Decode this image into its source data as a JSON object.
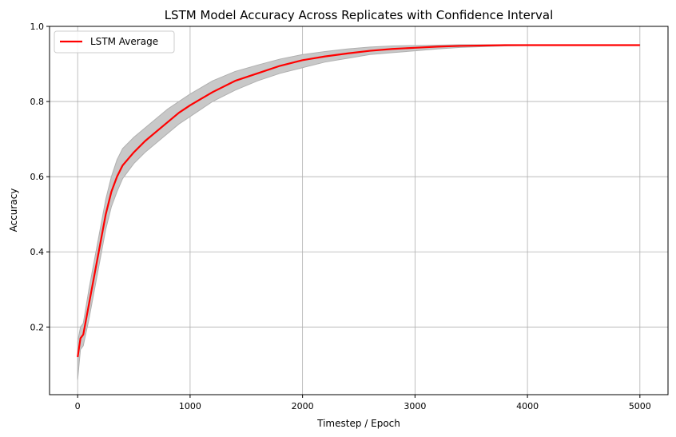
{
  "chart_data": {
    "type": "line",
    "title": "LSTM Model Accuracy Across Replicates with Confidence Interval",
    "xlabel": "Timestep / Epoch",
    "ylabel": "Accuracy",
    "xlim": [
      -250,
      5250
    ],
    "ylim": [
      0.02,
      1.0
    ],
    "xticks": [
      0,
      1000,
      2000,
      3000,
      4000,
      5000
    ],
    "yticks": [
      0.2,
      0.4,
      0.6,
      0.8,
      1.0
    ],
    "grid": true,
    "legend": {
      "placement": "top-left",
      "entries": [
        "LSTM Average"
      ]
    },
    "colors": {
      "mean_line": "#ff0000",
      "band_fill": "#c8c8c8",
      "band_edge": "#b0b0b0",
      "grid": "#b0b0b0"
    },
    "series": [
      {
        "name": "LSTM Average",
        "x": [
          0,
          25,
          50,
          100,
          150,
          200,
          250,
          300,
          350,
          400,
          500,
          600,
          700,
          800,
          900,
          1000,
          1200,
          1400,
          1600,
          1800,
          2000,
          2200,
          2400,
          2600,
          2800,
          3000,
          3200,
          3400,
          3600,
          3800,
          4000,
          4500,
          5000
        ],
        "y": [
          0.12,
          0.17,
          0.18,
          0.26,
          0.34,
          0.42,
          0.5,
          0.56,
          0.6,
          0.63,
          0.665,
          0.695,
          0.72,
          0.745,
          0.77,
          0.79,
          0.825,
          0.855,
          0.875,
          0.895,
          0.91,
          0.92,
          0.928,
          0.935,
          0.94,
          0.943,
          0.946,
          0.948,
          0.949,
          0.95,
          0.95,
          0.95,
          0.95
        ],
        "lower": [
          0.06,
          0.14,
          0.15,
          0.22,
          0.3,
          0.38,
          0.46,
          0.52,
          0.56,
          0.595,
          0.635,
          0.665,
          0.69,
          0.715,
          0.74,
          0.76,
          0.8,
          0.83,
          0.855,
          0.875,
          0.89,
          0.905,
          0.915,
          0.925,
          0.93,
          0.935,
          0.94,
          0.944,
          0.946,
          0.948,
          0.949,
          0.95,
          0.95
        ],
        "upper": [
          0.16,
          0.2,
          0.21,
          0.3,
          0.38,
          0.46,
          0.54,
          0.6,
          0.645,
          0.675,
          0.705,
          0.73,
          0.755,
          0.78,
          0.8,
          0.82,
          0.855,
          0.88,
          0.897,
          0.913,
          0.925,
          0.933,
          0.94,
          0.945,
          0.948,
          0.949,
          0.95,
          0.951,
          0.951,
          0.951,
          0.951,
          0.951,
          0.951
        ]
      }
    ]
  }
}
